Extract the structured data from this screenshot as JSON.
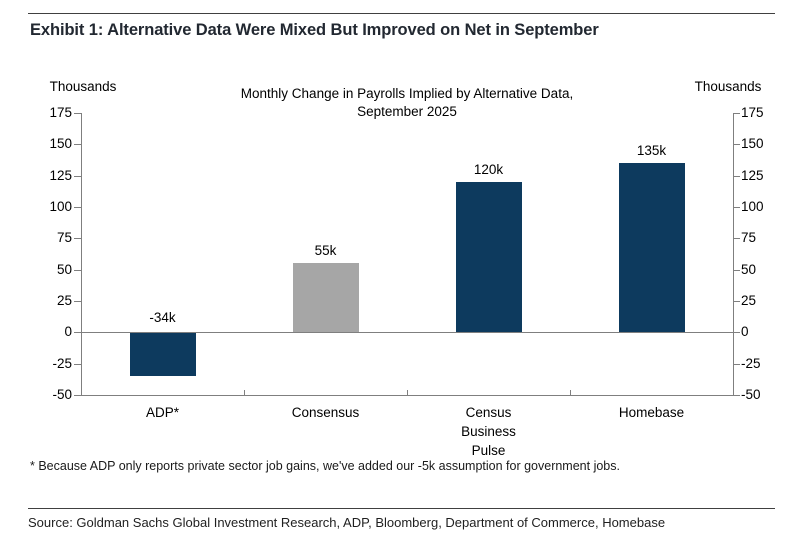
{
  "page": {
    "exhibit_title": "Exhibit 1: Alternative Data Were Mixed But Improved on Net in September",
    "footnote": "* Because ADP only reports private sector job gains, we've added our -5k assumption for government jobs.",
    "source": "Source: Goldman Sachs Global Investment Research, ADP, Bloomberg, Department of Commerce, Homebase"
  },
  "chart_data": {
    "type": "bar",
    "title_line1": "Monthly Change in Payrolls Implied by Alternative Data,",
    "title_line2": "September 2025",
    "axis_unit_left": "Thousands",
    "axis_unit_right": "Thousands",
    "categories": [
      "ADP*",
      "Consensus",
      "Census Business Pulse",
      "Homebase"
    ],
    "category_labels": [
      "ADP*",
      "Consensus",
      "Census\nBusiness\nPulse",
      "Homebase"
    ],
    "values": [
      -34,
      55,
      120,
      135
    ],
    "value_labels": [
      "-34k",
      "55k",
      "120k",
      "135k"
    ],
    "bar_colors": [
      "#0d3a5e",
      "#a6a6a6",
      "#0d3a5e",
      "#0d3a5e"
    ],
    "ylim": [
      -50,
      175
    ],
    "yticks": [
      175,
      150,
      125,
      100,
      75,
      50,
      25,
      0,
      -25,
      -50
    ],
    "grid": false,
    "legend": "none",
    "colors": {
      "navy": "#0d3a5e",
      "gray": "#a6a6a6",
      "axis": "#7f7f7f"
    }
  }
}
